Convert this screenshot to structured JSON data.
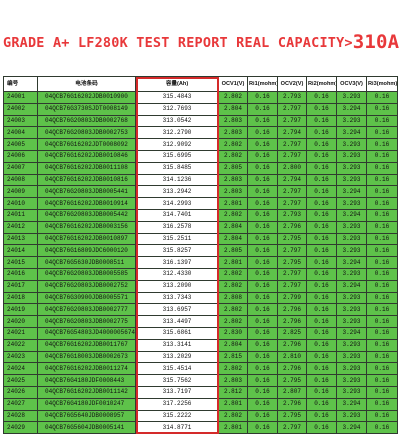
{
  "banner": {
    "prefix": "GRADE A+  LF280K  TEST  REPORT  REAL  CAPACITY>",
    "highlight": "310AH",
    "suffix": "+"
  },
  "table": {
    "headers": [
      "编号",
      "电池条码",
      "容量(Ah)",
      "OCV1(V)",
      "Ri1(mohm)",
      "OCV2(V)",
      "Ri2(mohm)",
      "OCV3(V)",
      "Ri3(mohm)"
    ],
    "rows": [
      [
        "24001",
        "04QCB76G16202JDB0010900",
        "315.4843",
        "2.802",
        "0.16",
        "2.793",
        "0.16",
        "3.293",
        "0.16"
      ],
      [
        "24002",
        "04QCB76G3730SJDT0008149",
        "312.7693",
        "2.804",
        "0.16",
        "2.797",
        "0.16",
        "3.294",
        "0.16"
      ],
      [
        "24003",
        "04QCB76G20803JDB0002768",
        "313.0542",
        "2.803",
        "0.16",
        "2.797",
        "0.16",
        "3.293",
        "0.16"
      ],
      [
        "24004",
        "04QCB76G20803JDB0002753",
        "312.2790",
        "2.803",
        "0.16",
        "2.794",
        "0.16",
        "3.294",
        "0.16"
      ],
      [
        "24005",
        "04QCB76G16202JDT0008092",
        "312.9092",
        "2.802",
        "0.16",
        "2.797",
        "0.16",
        "3.293",
        "0.16"
      ],
      [
        "24006",
        "04QCB76G16202JDB0010846",
        "315.6995",
        "2.802",
        "0.16",
        "2.797",
        "0.16",
        "3.293",
        "0.16"
      ],
      [
        "24007",
        "04QCB76G16202JDB0011108",
        "315.8485",
        "2.805",
        "0.16",
        "2.800",
        "0.16",
        "3.293",
        "0.16"
      ],
      [
        "24008",
        "04QCB76G16202JDB0010816",
        "314.1236",
        "2.803",
        "0.16",
        "2.794",
        "0.16",
        "3.293",
        "0.16"
      ],
      [
        "24009",
        "04QCB76G20803JDB0005441",
        "313.2942",
        "2.803",
        "0.16",
        "2.797",
        "0.16",
        "3.294",
        "0.16"
      ],
      [
        "24010",
        "04QCB76G16202JDB0010914",
        "314.2993",
        "2.801",
        "0.16",
        "2.797",
        "0.16",
        "3.293",
        "0.16"
      ],
      [
        "24011",
        "04QCB76G20803JDB0005442",
        "314.7401",
        "2.802",
        "0.16",
        "2.793",
        "0.16",
        "3.294",
        "0.16"
      ],
      [
        "24012",
        "04QCB76G16202JDB0003156",
        "316.2578",
        "2.804",
        "0.16",
        "2.796",
        "0.16",
        "3.293",
        "0.16"
      ],
      [
        "24013",
        "04QCB76G16202JDB0010897",
        "315.2511",
        "2.804",
        "0.16",
        "2.795",
        "0.16",
        "3.293",
        "0.16"
      ],
      [
        "24014",
        "04QCB76G16809JDC6000120",
        "315.8257",
        "2.805",
        "0.16",
        "2.797",
        "0.16",
        "3.293",
        "0.16"
      ],
      [
        "24015",
        "04QCB76G5630JDB0008511",
        "316.1397",
        "2.801",
        "0.16",
        "2.795",
        "0.16",
        "3.294",
        "0.16"
      ],
      [
        "24016",
        "04QCB76G20803JDB0005585",
        "312.4330",
        "2.802",
        "0.16",
        "2.797",
        "0.16",
        "3.293",
        "0.16"
      ],
      [
        "24017",
        "04QCB76G20803JDB0002752",
        "313.2090",
        "2.802",
        "0.16",
        "2.797",
        "0.16",
        "3.294",
        "0.16"
      ],
      [
        "24018",
        "04QCB76G30900JDB0005571",
        "313.7343",
        "2.808",
        "0.16",
        "2.799",
        "0.16",
        "3.293",
        "0.16"
      ],
      [
        "24019",
        "04QCB76G20803JDB0002777",
        "313.6957",
        "2.802",
        "0.16",
        "2.796",
        "0.16",
        "3.293",
        "0.16"
      ],
      [
        "24020",
        "04QCB76G20803JDB0002775",
        "313.4497",
        "2.802",
        "0.16",
        "2.796",
        "0.16",
        "3.293",
        "0.16"
      ],
      [
        "24021",
        "04QCB76G54803JD4000005674",
        "315.6861",
        "2.830",
        "0.16",
        "2.825",
        "0.16",
        "3.294",
        "0.16"
      ],
      [
        "24022",
        "04QCB76G16202JDB0011767",
        "313.3141",
        "2.804",
        "0.16",
        "2.796",
        "0.16",
        "3.293",
        "0.16"
      ],
      [
        "24023",
        "04QCB76G18003JDB0002673",
        "313.2029",
        "2.815",
        "0.16",
        "2.810",
        "0.16",
        "3.293",
        "0.16"
      ],
      [
        "24024",
        "04QCB76G16202JDB0011274",
        "315.4514",
        "2.802",
        "0.16",
        "2.796",
        "0.16",
        "3.293",
        "0.16"
      ],
      [
        "24025",
        "04QCB76G4180JDF0008443",
        "315.7562",
        "2.803",
        "0.16",
        "2.795",
        "0.16",
        "3.293",
        "0.16"
      ],
      [
        "24026",
        "04QCB76G16202JDB0011142",
        "313.7197",
        "2.812",
        "0.16",
        "2.807",
        "0.16",
        "3.293",
        "0.16"
      ],
      [
        "24027",
        "04QCB76G4180JDF0010247",
        "317.2256",
        "2.801",
        "0.16",
        "2.796",
        "0.16",
        "3.294",
        "0.16"
      ],
      [
        "24028",
        "04QCB76G5640JDB0008957",
        "315.2222",
        "2.802",
        "0.16",
        "2.795",
        "0.16",
        "3.293",
        "0.16"
      ],
      [
        "24029",
        "04QCB76G5604JDB0005141",
        "314.8771",
        "2.801",
        "0.16",
        "2.797",
        "0.16",
        "3.294",
        "0.16"
      ]
    ]
  },
  "colors": {
    "banner_text": "#e8383a",
    "cell_green": "#5ec24a",
    "highlight_frame": "#d42a2a"
  }
}
